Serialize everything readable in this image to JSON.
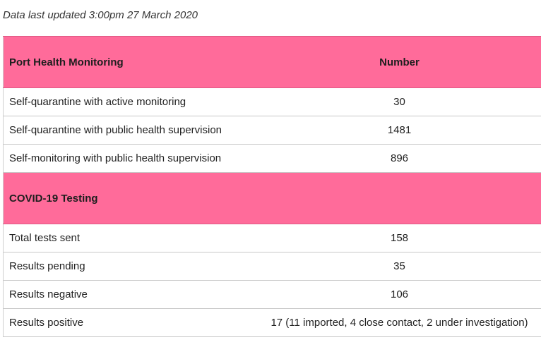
{
  "updated_text": "Data last updated 3:00pm 27 March 2020",
  "sections": [
    {
      "title": "Port Health Monitoring",
      "number_header": "Number",
      "rows": [
        {
          "label": "Self-quarantine with active monitoring",
          "value": "30"
        },
        {
          "label": "Self-quarantine with public health supervision",
          "value": "1481"
        },
        {
          "label": "Self-monitoring with public health supervision",
          "value": "896"
        }
      ]
    },
    {
      "title": "COVID-19 Testing",
      "number_header": "",
      "rows": [
        {
          "label": "Total tests sent",
          "value": "158"
        },
        {
          "label": "Results pending",
          "value": "35"
        },
        {
          "label": "Results negative",
          "value": "106"
        },
        {
          "label": "Results positive",
          "value": "17 (11 imported, 4 close contact, 2 under investigation)"
        }
      ]
    }
  ],
  "colors": {
    "header_background": "#ff6b9a",
    "row_divider": "#c8c8c8"
  }
}
